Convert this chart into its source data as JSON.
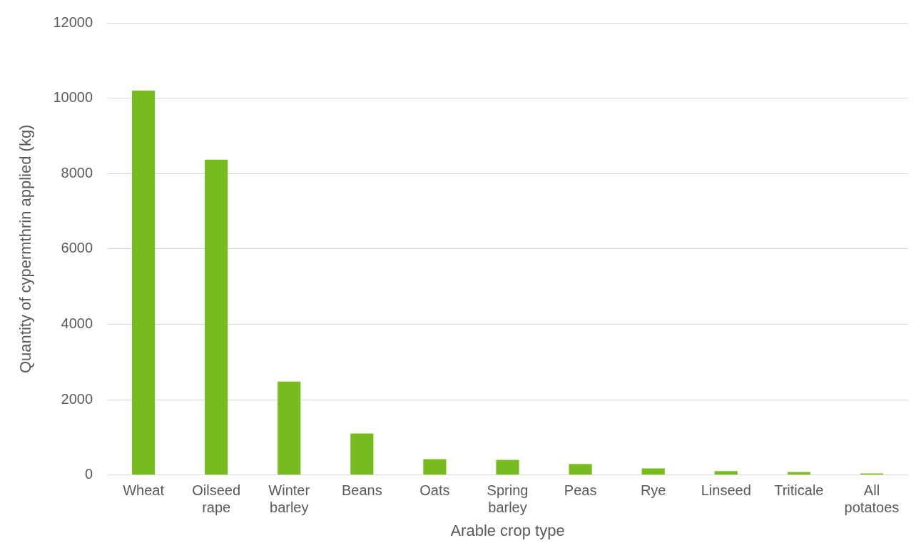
{
  "chart_data": {
    "type": "bar",
    "xlabel": "Arable crop type",
    "ylabel": "Quantity of cypermthrin applied (kg)",
    "categories": [
      "Wheat",
      "Oilseed rape",
      "Winter barley",
      "Beans",
      "Oats",
      "Spring barley",
      "Peas",
      "Rye",
      "Linseed",
      "Triticale",
      "All potatoes"
    ],
    "values": [
      10200,
      8370,
      2480,
      1100,
      420,
      400,
      290,
      170,
      100,
      80,
      40
    ],
    "color": "#77bc1f",
    "ylim": [
      0,
      12000
    ],
    "yticks": [
      0,
      2000,
      4000,
      6000,
      8000,
      10000,
      12000
    ],
    "grid": "y"
  }
}
